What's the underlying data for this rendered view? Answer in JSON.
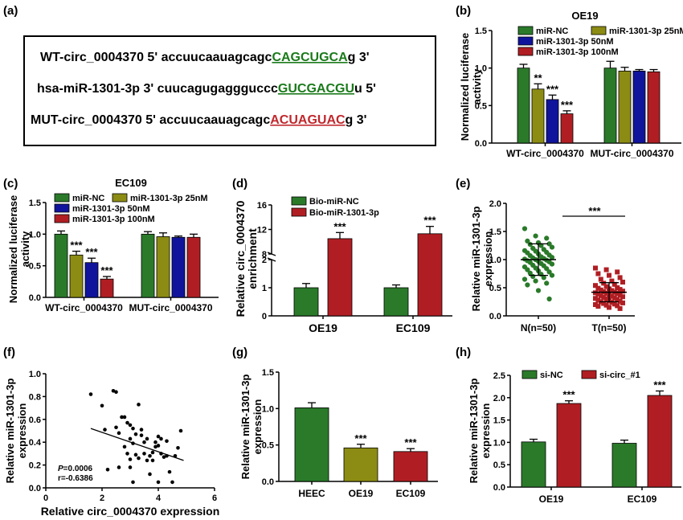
{
  "panels": {
    "a": "(a)",
    "b": "(b)",
    "c": "(c)",
    "d": "(d)",
    "e": "(e)",
    "f": "(f)",
    "g": "(g)",
    "h": "(h)"
  },
  "sequences": [
    {
      "name": "WT-circ_0004370",
      "end5": "5'",
      "prefix": "accuucaauagcagc",
      "site": "CAGCUGCA",
      "suffix": "g",
      "end3": "3'",
      "site_color": "#1a7a1a"
    },
    {
      "name": "hsa-miR-1301-3p",
      "end5": "3'",
      "prefix": "cuucagugaggguccc",
      "site": "GUCGACGU",
      "suffix": "u",
      "end3": "5'",
      "site_color": "#1a7a1a"
    },
    {
      "name": "MUT-circ_0004370",
      "end5": "5'",
      "prefix": "accuucaauagcagc",
      "site": "ACUAGUAC",
      "suffix": "g",
      "end3": "3'",
      "site_color": "#c0282d"
    }
  ],
  "colors": {
    "green": "#2a7a2a",
    "olive": "#8c8c14",
    "blue": "#10149c",
    "red": "#b01e23"
  },
  "chart_data": [
    {
      "panel": "b",
      "type": "bar",
      "title": "OE19",
      "ylabel": "Normalized luciferase activity",
      "categories": [
        "WT-circ_0004370",
        "MUT-circ_0004370"
      ],
      "series": [
        {
          "name": "miR-NC",
          "values": [
            1.0,
            1.0
          ],
          "errors": [
            0.05,
            0.09
          ]
        },
        {
          "name": "miR-1301-3p 25nM",
          "values": [
            0.72,
            0.96
          ],
          "errors": [
            0.07,
            0.05
          ]
        },
        {
          "name": "miR-1301-3p 50nM",
          "values": [
            0.58,
            0.96
          ],
          "errors": [
            0.06,
            0.02
          ]
        },
        {
          "name": "miR-1301-3p 100nM",
          "values": [
            0.39,
            0.95
          ],
          "errors": [
            0.04,
            0.03
          ]
        }
      ],
      "annotations": [
        "",
        "**",
        "***",
        "***"
      ],
      "ylim": [
        0,
        1.5
      ],
      "yticks": [
        "0.0",
        "0.5",
        "1.0",
        "1.5"
      ]
    },
    {
      "panel": "c",
      "type": "bar",
      "title": "EC109",
      "ylabel": "Normalized luciferase activity",
      "categories": [
        "WT-circ_0004370",
        "MUT-circ_0004370"
      ],
      "series": [
        {
          "name": "miR-NC",
          "values": [
            1.0,
            1.0
          ],
          "errors": [
            0.05,
            0.04
          ]
        },
        {
          "name": "miR-1301-3p 25nM",
          "values": [
            0.67,
            0.96
          ],
          "errors": [
            0.06,
            0.06
          ]
        },
        {
          "name": "miR-1301-3p 50nM",
          "values": [
            0.55,
            0.95
          ],
          "errors": [
            0.07,
            0.02
          ]
        },
        {
          "name": "miR-1301-3p 100nM",
          "values": [
            0.29,
            0.95
          ],
          "errors": [
            0.04,
            0.05
          ]
        }
      ],
      "annotations": [
        "",
        "***",
        "***",
        "***"
      ],
      "ylim": [
        0,
        1.5
      ],
      "yticks": [
        "0.0",
        "0.5",
        "1.0",
        "1.5"
      ]
    },
    {
      "panel": "d",
      "type": "bar",
      "ylabel": "Relative circ_0004370 enrichment",
      "categories": [
        "OE19",
        "EC109"
      ],
      "series": [
        {
          "name": "Bio-miR-NC",
          "values": [
            1.0,
            1.0
          ],
          "errors": [
            0.15,
            0.1
          ]
        },
        {
          "name": "Bio-miR-1301-3p",
          "values": [
            10.5,
            11.3
          ],
          "errors": [
            1.0,
            1.2
          ]
        }
      ],
      "annotations": [
        "***",
        "***"
      ],
      "ybreak": [
        2,
        8
      ],
      "ylim": [
        0,
        16
      ],
      "yticks": [
        "0",
        "1",
        "2",
        "8",
        "12",
        "16"
      ]
    },
    {
      "panel": "e",
      "type": "scatter",
      "ylabel": "Relative miR-1301-3p expression",
      "categories": [
        "N(n=50)",
        "T(n=50)"
      ],
      "group_mean": [
        1.0,
        0.42
      ],
      "group_sd": [
        0.28,
        0.17
      ],
      "N_values": [
        1.55,
        1.42,
        1.38,
        1.33,
        1.3,
        1.28,
        1.27,
        1.25,
        1.22,
        1.2,
        1.18,
        1.16,
        1.15,
        1.13,
        1.12,
        1.1,
        1.08,
        1.07,
        1.05,
        1.04,
        1.03,
        1.02,
        1.01,
        1.0,
        0.99,
        0.98,
        0.97,
        0.96,
        0.95,
        0.93,
        0.92,
        0.9,
        0.89,
        0.87,
        0.85,
        0.84,
        0.82,
        0.8,
        0.78,
        0.76,
        0.74,
        0.72,
        0.7,
        0.68,
        0.65,
        0.62,
        0.58,
        0.55,
        0.45,
        0.3
      ],
      "T_values": [
        0.85,
        0.82,
        0.78,
        0.75,
        0.72,
        0.68,
        0.65,
        0.62,
        0.6,
        0.58,
        0.56,
        0.54,
        0.52,
        0.5,
        0.49,
        0.48,
        0.47,
        0.46,
        0.45,
        0.44,
        0.43,
        0.42,
        0.41,
        0.4,
        0.4,
        0.39,
        0.38,
        0.37,
        0.36,
        0.35,
        0.34,
        0.33,
        0.32,
        0.31,
        0.3,
        0.29,
        0.28,
        0.27,
        0.26,
        0.25,
        0.24,
        0.23,
        0.22,
        0.21,
        0.2,
        0.19,
        0.18,
        0.17,
        0.15,
        0.13
      ],
      "annotation": "***",
      "ylim": [
        0,
        2.0
      ],
      "yticks": [
        "0.0",
        "0.5",
        "1.0",
        "1.5",
        "2.0"
      ]
    },
    {
      "panel": "f",
      "type": "scatter",
      "xlabel": "Relative circ_0004370 expression",
      "ylabel": "Relative miR-1301-3p expression",
      "points": [
        [
          1.6,
          0.82
        ],
        [
          2.0,
          0.72
        ],
        [
          2.1,
          0.51
        ],
        [
          2.4,
          0.85
        ],
        [
          2.5,
          0.84
        ],
        [
          2.6,
          0.48
        ],
        [
          2.5,
          0.53
        ],
        [
          2.7,
          0.62
        ],
        [
          2.8,
          0.62
        ],
        [
          2.8,
          0.36
        ],
        [
          2.9,
          0.57
        ],
        [
          2.9,
          0.3
        ],
        [
          3.0,
          0.55
        ],
        [
          3.0,
          0.43
        ],
        [
          3.0,
          0.25
        ],
        [
          3.1,
          0.52
        ],
        [
          3.1,
          0.39
        ],
        [
          3.2,
          0.47
        ],
        [
          3.2,
          0.29
        ],
        [
          3.3,
          0.26
        ],
        [
          3.3,
          0.73
        ],
        [
          3.4,
          0.51
        ],
        [
          3.4,
          0.46
        ],
        [
          3.5,
          0.3
        ],
        [
          3.5,
          0.4
        ],
        [
          3.6,
          0.24
        ],
        [
          3.6,
          0.43
        ],
        [
          3.7,
          0.12
        ],
        [
          3.7,
          0.28
        ],
        [
          3.8,
          0.24
        ],
        [
          3.8,
          0.31
        ],
        [
          3.9,
          0.4
        ],
        [
          3.9,
          0.36
        ],
        [
          4.0,
          0.45
        ],
        [
          4.0,
          0.37
        ],
        [
          4.1,
          0.43
        ],
        [
          4.1,
          0.3
        ],
        [
          4.2,
          0.27
        ],
        [
          4.3,
          0.28
        ],
        [
          4.3,
          0.41
        ],
        [
          4.4,
          0.14
        ],
        [
          4.5,
          0.05
        ],
        [
          4.6,
          0.28
        ],
        [
          4.7,
          0.35
        ],
        [
          4.8,
          0.5
        ],
        [
          2.2,
          0.16
        ],
        [
          2.6,
          0.18
        ],
        [
          3.0,
          0.18
        ],
        [
          3.1,
          0.05
        ],
        [
          4.0,
          0.05
        ]
      ],
      "fit": [
        [
          1.6,
          0.52
        ],
        [
          4.9,
          0.24
        ]
      ],
      "stats": {
        "p": "=0.0006",
        "r": "r=-0.6386",
        "p_prefix": "P"
      },
      "xlim": [
        0,
        6
      ],
      "ylim": [
        0,
        1.0
      ],
      "xticks": [
        "0",
        "2",
        "4",
        "6"
      ],
      "yticks": [
        "0.0",
        "0.2",
        "0.4",
        "0.6",
        "0.8",
        "1.0"
      ]
    },
    {
      "panel": "g",
      "type": "bar",
      "ylabel": "Relative miR-1301-3p expression",
      "categories": [
        "HEEC",
        "OE19",
        "EC109"
      ],
      "values": [
        1.01,
        0.46,
        0.41
      ],
      "errors": [
        0.07,
        0.05,
        0.04
      ],
      "annotations": [
        "",
        "***",
        "***"
      ],
      "ylim": [
        0,
        1.5
      ],
      "yticks": [
        "0.0",
        "0.5",
        "1.0",
        "1.5"
      ]
    },
    {
      "panel": "h",
      "type": "bar",
      "ylabel": "Relative miR-1301-3p expression",
      "categories": [
        "OE19",
        "EC109"
      ],
      "series": [
        {
          "name": "si-NC",
          "values": [
            1.01,
            0.98
          ],
          "errors": [
            0.06,
            0.07
          ]
        },
        {
          "name": "si-circ_#1",
          "values": [
            1.87,
            2.05
          ],
          "errors": [
            0.06,
            0.1
          ]
        }
      ],
      "annotations": [
        "***",
        "***"
      ],
      "ylim": [
        0,
        2.5
      ],
      "yticks": [
        "0.0",
        "0.5",
        "1.0",
        "1.5",
        "2.0",
        "2.5"
      ]
    }
  ]
}
